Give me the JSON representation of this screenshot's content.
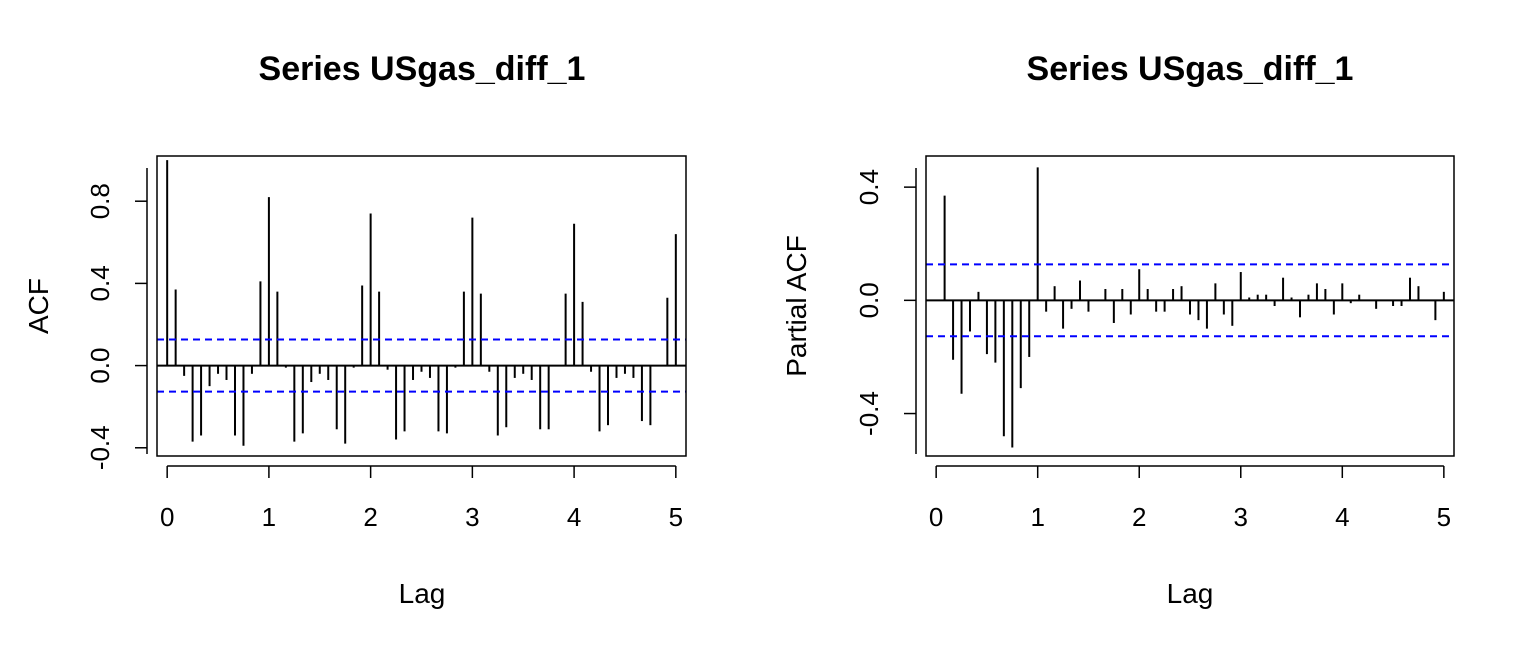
{
  "chart_data": [
    {
      "type": "bar",
      "title": "Series  USgas_diff_1",
      "xlabel": "Lag",
      "ylabel": "ACF",
      "xlim": [
        -0.1,
        5.1
      ],
      "ylim": [
        -0.44,
        1.02
      ],
      "x_ticks": [
        0,
        1,
        2,
        3,
        4,
        5
      ],
      "x_tick_labels": [
        "0",
        "1",
        "2",
        "3",
        "4",
        "5"
      ],
      "y_ticks": [
        -0.4,
        0.0,
        0.4,
        0.8
      ],
      "y_tick_labels": [
        "-0.4",
        "0.0",
        "0.4",
        "0.8"
      ],
      "ci_bound": 0.127,
      "ci_color": "#0000ff",
      "series": [
        {
          "lags": [
            0,
            0.0833,
            0.1667,
            0.25,
            0.3333,
            0.4167,
            0.5,
            0.5833,
            0.6667,
            0.75,
            0.8333,
            0.9167,
            1.0,
            1.0833,
            1.1667,
            1.25,
            1.3333,
            1.4167,
            1.5,
            1.5833,
            1.6667,
            1.75,
            1.8333,
            1.9167,
            2.0,
            2.0833,
            2.1667,
            2.25,
            2.3333,
            2.4167,
            2.5,
            2.5833,
            2.6667,
            2.75,
            2.8333,
            2.9167,
            3.0,
            3.0833,
            3.1667,
            3.25,
            3.3333,
            3.4167,
            3.5,
            3.5833,
            3.6667,
            3.75,
            3.8333,
            3.9167,
            4.0,
            4.0833,
            4.1667,
            4.25,
            4.3333,
            4.4167,
            4.5,
            4.5833,
            4.6667,
            4.75,
            4.8333,
            4.9167,
            5.0
          ],
          "values": [
            1.0,
            0.37,
            -0.05,
            -0.37,
            -0.34,
            -0.1,
            -0.04,
            -0.07,
            -0.34,
            -0.39,
            -0.04,
            0.41,
            0.82,
            0.36,
            -0.01,
            -0.37,
            -0.33,
            -0.08,
            -0.04,
            -0.07,
            -0.31,
            -0.38,
            -0.01,
            0.39,
            0.74,
            0.36,
            -0.02,
            -0.36,
            -0.32,
            -0.07,
            -0.03,
            -0.06,
            -0.32,
            -0.33,
            -0.01,
            0.36,
            0.72,
            0.35,
            -0.03,
            -0.34,
            -0.3,
            -0.06,
            -0.04,
            -0.07,
            -0.31,
            -0.31,
            0.0,
            0.35,
            0.69,
            0.31,
            -0.03,
            -0.32,
            -0.29,
            -0.06,
            -0.04,
            -0.06,
            -0.27,
            -0.29,
            0.0,
            0.33,
            0.64
          ]
        }
      ]
    },
    {
      "type": "bar",
      "title": "Series  USgas_diff_1",
      "xlabel": "Lag",
      "ylabel": "Partial ACF",
      "xlim": [
        -0.1,
        5.1
      ],
      "ylim": [
        -0.55,
        0.51
      ],
      "x_ticks": [
        0,
        1,
        2,
        3,
        4,
        5
      ],
      "x_tick_labels": [
        "0",
        "1",
        "2",
        "3",
        "4",
        "5"
      ],
      "y_ticks": [
        -0.4,
        0.0,
        0.4
      ],
      "y_tick_labels": [
        "-0.4",
        "0.0",
        "0.4"
      ],
      "ci_bound": 0.127,
      "ci_color": "#0000ff",
      "series": [
        {
          "lags": [
            0.0833,
            0.1667,
            0.25,
            0.3333,
            0.4167,
            0.5,
            0.5833,
            0.6667,
            0.75,
            0.8333,
            0.9167,
            1.0,
            1.0833,
            1.1667,
            1.25,
            1.3333,
            1.4167,
            1.5,
            1.5833,
            1.6667,
            1.75,
            1.8333,
            1.9167,
            2.0,
            2.0833,
            2.1667,
            2.25,
            2.3333,
            2.4167,
            2.5,
            2.5833,
            2.6667,
            2.75,
            2.8333,
            2.9167,
            3.0,
            3.0833,
            3.1667,
            3.25,
            3.3333,
            3.4167,
            3.5,
            3.5833,
            3.6667,
            3.75,
            3.8333,
            3.9167,
            4.0,
            4.0833,
            4.1667,
            4.25,
            4.3333,
            4.4167,
            4.5,
            4.5833,
            4.6667,
            4.75,
            4.8333,
            4.9167,
            5.0
          ],
          "values": [
            0.37,
            -0.21,
            -0.33,
            -0.11,
            0.03,
            -0.19,
            -0.22,
            -0.48,
            -0.52,
            -0.31,
            -0.2,
            0.47,
            -0.04,
            0.05,
            -0.1,
            -0.03,
            0.07,
            -0.04,
            0.0,
            0.04,
            -0.08,
            0.04,
            -0.05,
            0.11,
            0.04,
            -0.04,
            -0.04,
            0.04,
            0.05,
            -0.05,
            -0.07,
            -0.1,
            0.06,
            -0.05,
            -0.09,
            0.1,
            0.01,
            0.02,
            0.02,
            -0.02,
            0.08,
            0.01,
            -0.06,
            0.02,
            0.06,
            0.04,
            -0.05,
            0.06,
            -0.01,
            0.02,
            0.0,
            -0.03,
            0.0,
            -0.02,
            -0.02,
            0.08,
            0.05,
            0.0,
            -0.07,
            0.03
          ]
        }
      ]
    }
  ]
}
